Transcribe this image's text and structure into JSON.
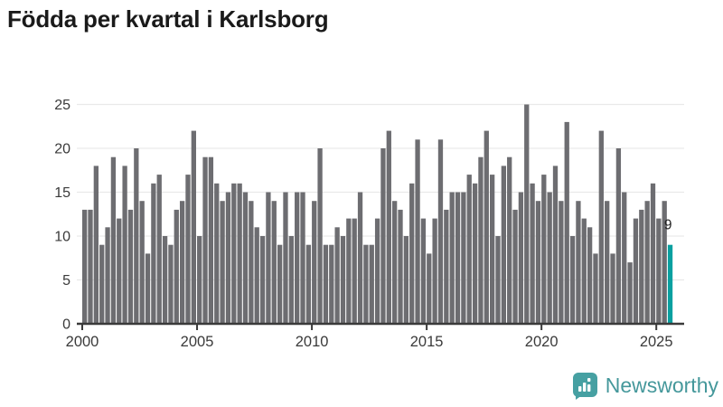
{
  "header": {
    "title": "Födda per kvartal i Karlsborg"
  },
  "footer": {
    "brand_label": "Newsworthy"
  },
  "colors": {
    "bar_default": "#6d6d71",
    "bar_highlight": "#09a0a0",
    "gridline": "#e9e9e9",
    "axis": "#3a3a3a",
    "tick_label": "#3a3a3a",
    "data_label": "#222222",
    "title_text": "#1a1a1a",
    "logo_teal": "#46a0a2"
  },
  "chart_data": {
    "type": "bar",
    "title": "Födda per kvartal i Karlsborg",
    "xlabel": "",
    "ylabel": "",
    "ylim": [
      0,
      25
    ],
    "yticks": [
      0,
      5,
      10,
      15,
      20,
      25
    ],
    "xticks": [
      2000,
      2005,
      2010,
      2015,
      2020,
      2025
    ],
    "grid": "horizontal",
    "legend_position": "none",
    "series_unit": "births per quarter",
    "years": [
      {
        "year": 2000,
        "values": [
          13,
          13,
          18,
          9
        ]
      },
      {
        "year": 2001,
        "values": [
          11,
          19,
          12,
          18
        ]
      },
      {
        "year": 2002,
        "values": [
          13,
          20,
          14,
          8
        ]
      },
      {
        "year": 2003,
        "values": [
          16,
          17,
          10,
          9
        ]
      },
      {
        "year": 2004,
        "values": [
          13,
          14,
          17,
          22
        ]
      },
      {
        "year": 2005,
        "values": [
          10,
          19,
          19,
          16
        ]
      },
      {
        "year": 2006,
        "values": [
          14,
          15,
          16,
          16
        ]
      },
      {
        "year": 2007,
        "values": [
          15,
          14,
          11,
          10
        ]
      },
      {
        "year": 2008,
        "values": [
          15,
          14,
          9,
          15
        ]
      },
      {
        "year": 2009,
        "values": [
          10,
          15,
          15,
          9
        ]
      },
      {
        "year": 2010,
        "values": [
          14,
          20,
          9,
          9
        ]
      },
      {
        "year": 2011,
        "values": [
          11,
          10,
          12,
          12
        ]
      },
      {
        "year": 2012,
        "values": [
          15,
          9,
          9,
          12
        ]
      },
      {
        "year": 2013,
        "values": [
          20,
          22,
          14,
          13
        ]
      },
      {
        "year": 2014,
        "values": [
          10,
          16,
          21,
          12
        ]
      },
      {
        "year": 2015,
        "values": [
          8,
          12,
          21,
          13
        ]
      },
      {
        "year": 2016,
        "values": [
          15,
          15,
          15,
          17
        ]
      },
      {
        "year": 2017,
        "values": [
          16,
          19,
          22,
          17
        ]
      },
      {
        "year": 2018,
        "values": [
          10,
          18,
          19,
          13
        ]
      },
      {
        "year": 2019,
        "values": [
          15,
          25,
          16,
          14
        ]
      },
      {
        "year": 2020,
        "values": [
          17,
          15,
          18,
          14
        ]
      },
      {
        "year": 2021,
        "values": [
          23,
          10,
          14,
          12
        ]
      },
      {
        "year": 2022,
        "values": [
          11,
          8,
          22,
          14
        ]
      },
      {
        "year": 2023,
        "values": [
          8,
          20,
          15,
          7
        ]
      },
      {
        "year": 2024,
        "values": [
          12,
          13,
          14,
          16
        ]
      },
      {
        "year": 2025,
        "values": [
          12,
          14,
          9
        ]
      }
    ],
    "highlight": {
      "year": 2025,
      "quarter": "Q3",
      "value": 9,
      "label": "9"
    }
  }
}
